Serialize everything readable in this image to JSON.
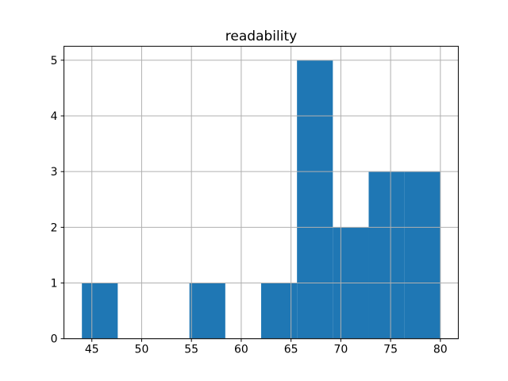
{
  "chart_data": {
    "type": "bar",
    "subtype": "histogram",
    "title": "readability",
    "bin_edges": [
      44,
      47.6,
      51.2,
      54.8,
      58.4,
      62,
      65.6,
      69.2,
      72.8,
      76.4,
      80
    ],
    "counts": [
      1,
      0,
      0,
      1,
      0,
      1,
      5,
      2,
      3,
      3
    ],
    "x_ticks": [
      45,
      50,
      55,
      60,
      65,
      70,
      75,
      80
    ],
    "y_ticks": [
      0,
      1,
      2,
      3,
      4,
      5
    ],
    "xlim": [
      42.2,
      81.8
    ],
    "ylim": [
      0,
      5.25
    ],
    "grid": true,
    "legend": false,
    "xlabel": "",
    "ylabel": "",
    "bar_color": "#1f77b4",
    "grid_color": "#b0b0b0",
    "axes_color": "#000000",
    "text_color": "#000000",
    "background": "#ffffff"
  }
}
